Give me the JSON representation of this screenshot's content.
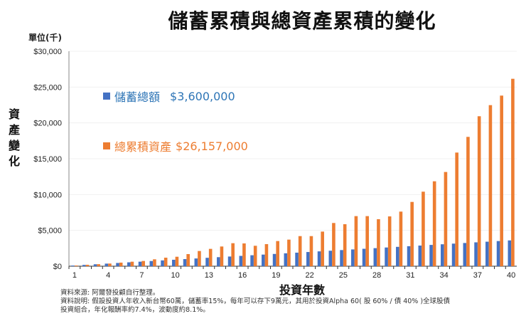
{
  "chart_data": {
    "type": "bar",
    "title": "儲蓄累積與總資產累積的變化",
    "unit_label": "單位(千)",
    "ylabel": "資產變化",
    "xlabel": "投資年數",
    "ylim": [
      0,
      30000
    ],
    "yticks": [
      "$0",
      "$5,000",
      "$10,000",
      "$15,000",
      "$20,000",
      "$25,000",
      "$30,000"
    ],
    "ytick_values": [
      0,
      5000,
      10000,
      15000,
      20000,
      25000,
      30000
    ],
    "xticks": [
      "1",
      "4",
      "7",
      "10",
      "13",
      "16",
      "19",
      "22",
      "25",
      "28",
      "31",
      "34",
      "37",
      "40"
    ],
    "grid": true,
    "categories": [
      1,
      2,
      3,
      4,
      5,
      6,
      7,
      8,
      9,
      10,
      11,
      12,
      13,
      14,
      15,
      16,
      17,
      18,
      19,
      20,
      21,
      22,
      23,
      24,
      25,
      26,
      27,
      28,
      29,
      30,
      31,
      32,
      33,
      34,
      35,
      36,
      37,
      38,
      39,
      40
    ],
    "series": [
      {
        "name": "儲蓄總額",
        "legend_value": "$3,600,000",
        "color": "#4472c4",
        "values": [
          90,
          180,
          270,
          360,
          450,
          540,
          630,
          720,
          810,
          900,
          990,
          1080,
          1170,
          1260,
          1350,
          1440,
          1530,
          1620,
          1710,
          1800,
          1890,
          1980,
          2070,
          2160,
          2250,
          2340,
          2430,
          2520,
          2610,
          2700,
          2790,
          2880,
          2970,
          3060,
          3150,
          3240,
          3330,
          3420,
          3510,
          3600
        ]
      },
      {
        "name": "總累積資產",
        "legend_value": "$26,157,000",
        "color": "#ed7d31",
        "values": [
          95,
          200,
          280,
          370,
          500,
          630,
          730,
          960,
          1190,
          1320,
          1690,
          2120,
          2420,
          2750,
          3210,
          3180,
          2850,
          3080,
          3510,
          3710,
          4200,
          4200,
          4830,
          6030,
          5860,
          6990,
          6990,
          6560,
          6950,
          7620,
          8970,
          10400,
          11850,
          13150,
          15860,
          18050,
          20930,
          22480,
          23810,
          26157
        ]
      }
    ],
    "legend_placement": "top-left"
  },
  "notes": [
    "資料來源: 阿爾發投顧自行整理。",
    "資料說明: 假設投資人年收入新台幣60萬，儲蓄率15%，每年可以存下9萬元，其用於投資Alpha 60( 股 60% / 債 40% )全球股債",
    "投資組合，年化報酬率約7.4%，波動度約8.1%。"
  ]
}
